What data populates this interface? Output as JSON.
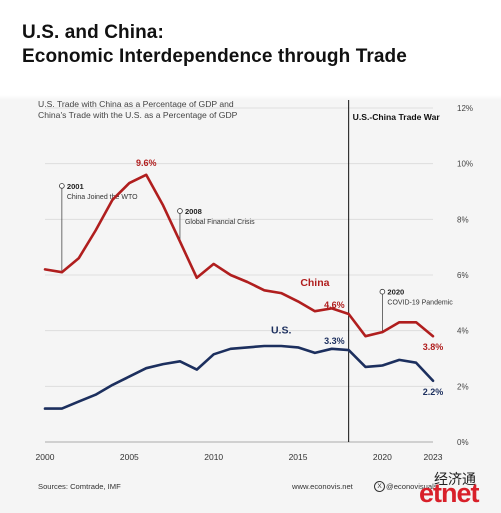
{
  "title_line1": "U.S. and China:",
  "title_line2": "Economic Interdependence through Trade",
  "subtitle_line1": "U.S. Trade with China as a Percentage of GDP and",
  "subtitle_line2": "China's Trade with the U.S. as a Percentage of GDP",
  "source": "Sources: Comtrade, IMF",
  "website": "www.econovis.net",
  "handle": "@econovisuals",
  "x_icon": "X",
  "watermark_cn": "经济通",
  "watermark_logo": "etnet",
  "colors": {
    "china": "#b01e1e",
    "us": "#1c2f5e",
    "grid": "#d9d9d9",
    "text": "#333333"
  },
  "chart_data": {
    "type": "line",
    "x": [
      2000,
      2001,
      2002,
      2003,
      2004,
      2005,
      2006,
      2007,
      2008,
      2009,
      2010,
      2011,
      2012,
      2013,
      2014,
      2015,
      2016,
      2017,
      2018,
      2019,
      2020,
      2021,
      2022,
      2023
    ],
    "xticks": [
      "2000",
      "2005",
      "2010",
      "2015",
      "2020",
      "2023"
    ],
    "ylim": [
      0,
      12
    ],
    "yticks": [
      "0%",
      "2%",
      "4%",
      "6%",
      "8%",
      "10%",
      "12%"
    ],
    "ytick_values": [
      0,
      2,
      4,
      6,
      8,
      10,
      12
    ],
    "grid": true,
    "series": [
      {
        "name": "China",
        "values": [
          6.2,
          6.1,
          6.6,
          7.6,
          8.7,
          9.3,
          9.6,
          8.5,
          7.2,
          5.9,
          6.4,
          6.0,
          5.75,
          5.45,
          5.35,
          5.05,
          4.7,
          4.8,
          4.6,
          3.8,
          3.95,
          4.3,
          4.3,
          3.8
        ]
      },
      {
        "name": "U.S.",
        "values": [
          1.2,
          1.2,
          1.45,
          1.7,
          2.05,
          2.35,
          2.65,
          2.8,
          2.9,
          2.6,
          3.15,
          3.35,
          3.4,
          3.45,
          3.45,
          3.4,
          3.2,
          3.35,
          3.3,
          2.7,
          2.75,
          2.95,
          2.85,
          2.2
        ]
      }
    ],
    "data_labels": [
      {
        "series": "China",
        "x": 2006,
        "y": 9.6,
        "text": "9.6%"
      },
      {
        "series": "China",
        "x": 2018,
        "y": 4.6,
        "text": "4.6%"
      },
      {
        "series": "China",
        "x": 2023,
        "y": 3.8,
        "text": "3.8%"
      },
      {
        "series": "U.S.",
        "x": 2018,
        "y": 3.3,
        "text": "3.3%"
      },
      {
        "series": "U.S.",
        "x": 2023,
        "y": 2.2,
        "text": "2.2%"
      }
    ],
    "series_labels": [
      {
        "series": "China",
        "text": "China"
      },
      {
        "series": "U.S.",
        "text": "U.S."
      }
    ],
    "annotations": [
      {
        "year": "2001",
        "text": "China Joined the WTO",
        "x": 2001,
        "y_from": 6.1,
        "y_to": 9.2
      },
      {
        "year": "2008",
        "text": "Global Financial Crisis",
        "x": 2008,
        "y_from": 7.2,
        "y_to": 8.3
      },
      {
        "year": "2020",
        "text": "COVID-19 Pandemic",
        "x": 2020,
        "y_from": 3.95,
        "y_to": 5.4
      }
    ],
    "event": {
      "label": "U.S.-China Trade War",
      "x": 2018
    }
  }
}
